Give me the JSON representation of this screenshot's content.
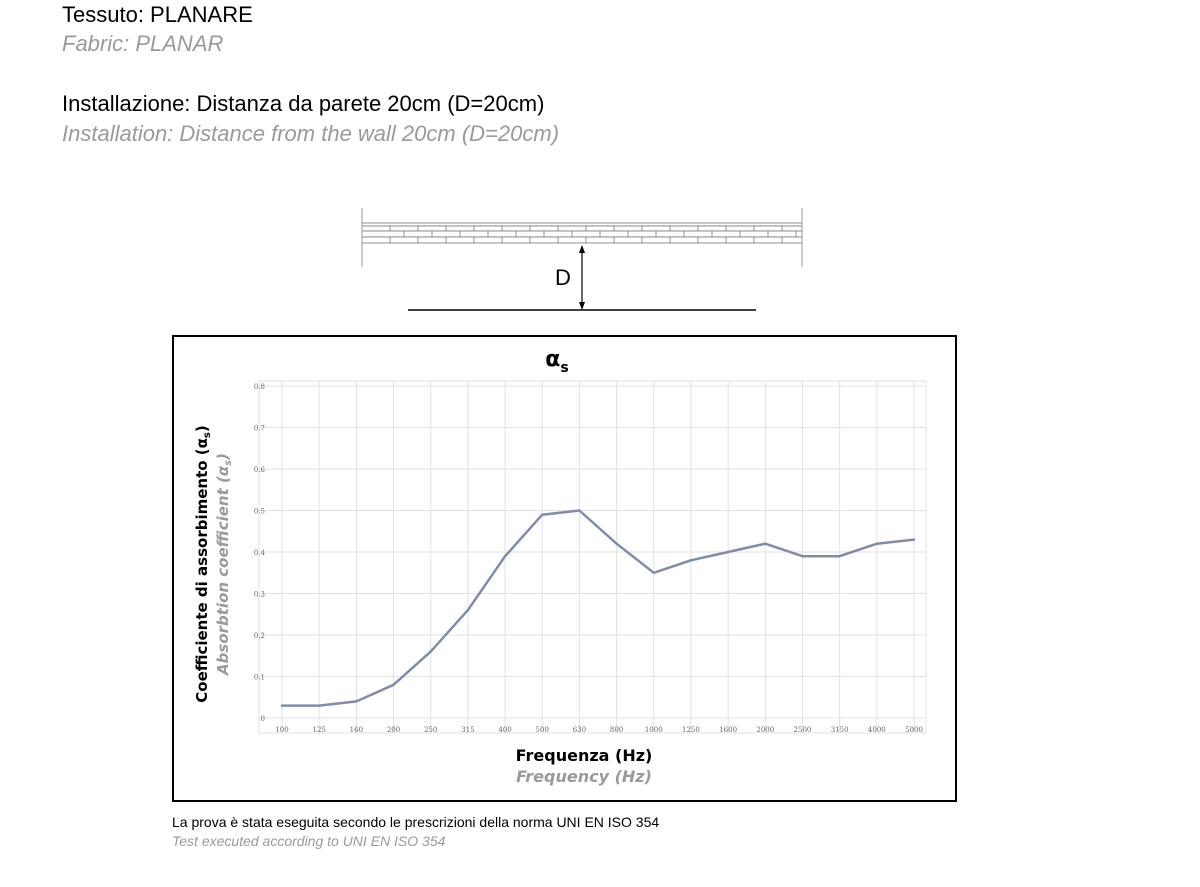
{
  "header": {
    "fabric_it": "Tessuto: PLANARE",
    "fabric_en": "Fabric: PLANAR",
    "install_it": "Installazione: Distanza da parete 20cm (D=20cm)",
    "install_en": "Installation: Distance from the wall 20cm (D=20cm)"
  },
  "diagram": {
    "distance_label": "D"
  },
  "chart_data": {
    "type": "line",
    "title": "α",
    "title_sub": "s",
    "ylabel": "Coefficiente di assorbimento (α",
    "ylabel_sub": "s",
    "ylabel_close": ")",
    "ylabel_en": "Absorbtion coefficient (α",
    "ylabel_en_sub": "s",
    "ylabel_en_close": ")",
    "xlabel": "Frequenza (Hz)",
    "xlabel_en": "Frequency (Hz)",
    "ylim": [
      0,
      0.8
    ],
    "yticks": [
      "0",
      "0.1",
      "0.2",
      "0.3",
      "0.4",
      "0.5",
      "0.6",
      "0.7",
      "0.8"
    ],
    "categories": [
      "100",
      "125",
      "160",
      "200",
      "250",
      "315",
      "400",
      "500",
      "630",
      "800",
      "1000",
      "1250",
      "1600",
      "2000",
      "2500",
      "3150",
      "4000",
      "5000"
    ],
    "values": [
      0.03,
      0.03,
      0.04,
      0.08,
      0.16,
      0.26,
      0.39,
      0.49,
      0.5,
      0.42,
      0.35,
      0.38,
      0.4,
      0.42,
      0.39,
      0.39,
      0.42,
      0.43
    ],
    "grid": true,
    "line_color": "#7f8cab"
  },
  "footer": {
    "note_it": "La prova è stata eseguita secondo le prescrizioni della norma UNI EN ISO 354",
    "note_en": "Test executed according  to UNI EN ISO 354"
  }
}
